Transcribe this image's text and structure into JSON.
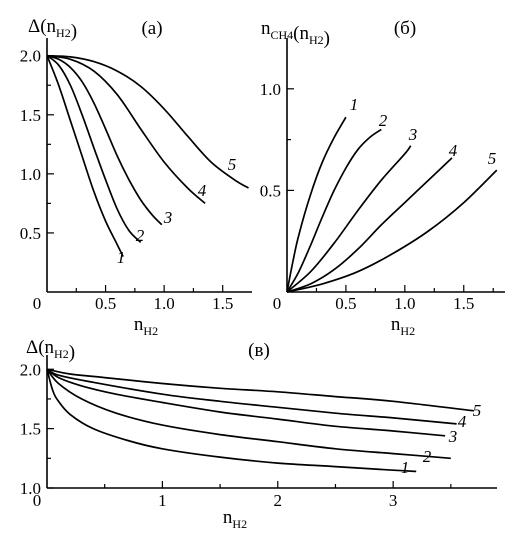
{
  "chart_data": [
    {
      "panel": "(а)",
      "type": "line",
      "ylabel": "Δ(n_H2)",
      "xlabel": "n_H2",
      "xlim": [
        0,
        1.75
      ],
      "ylim": [
        0,
        2.15
      ],
      "xticks": [
        "0",
        "0.5",
        "1.0",
        "1.5"
      ],
      "yticks": [
        "0.5",
        "1.0",
        "1.5",
        "2.0"
      ],
      "series": [
        {
          "name": "1",
          "x": [
            0,
            0.1,
            0.2,
            0.3,
            0.4,
            0.5,
            0.6,
            0.65
          ],
          "y": [
            2.0,
            1.75,
            1.45,
            1.15,
            0.85,
            0.6,
            0.4,
            0.3
          ]
        },
        {
          "name": "2",
          "x": [
            0,
            0.1,
            0.2,
            0.3,
            0.4,
            0.5,
            0.6,
            0.7,
            0.8
          ],
          "y": [
            2.0,
            1.92,
            1.75,
            1.5,
            1.22,
            0.95,
            0.7,
            0.52,
            0.42
          ]
        },
        {
          "name": "3",
          "x": [
            0,
            0.1,
            0.2,
            0.3,
            0.4,
            0.5,
            0.6,
            0.7,
            0.8,
            0.9,
            0.98
          ],
          "y": [
            2.0,
            1.97,
            1.9,
            1.78,
            1.6,
            1.38,
            1.15,
            0.95,
            0.78,
            0.65,
            0.57
          ]
        },
        {
          "name": "4",
          "x": [
            0,
            0.2,
            0.4,
            0.6,
            0.8,
            1.0,
            1.2,
            1.35
          ],
          "y": [
            2.0,
            1.97,
            1.87,
            1.67,
            1.38,
            1.1,
            0.88,
            0.75
          ]
        },
        {
          "name": "5",
          "x": [
            0,
            0.2,
            0.4,
            0.6,
            0.8,
            1.0,
            1.2,
            1.4,
            1.6,
            1.72
          ],
          "y": [
            2.0,
            1.99,
            1.95,
            1.87,
            1.74,
            1.55,
            1.32,
            1.1,
            0.95,
            0.88
          ]
        }
      ]
    },
    {
      "panel": "(б)",
      "type": "line",
      "ylabel": "n_CH4(n_H2)",
      "xlabel": "n_H2",
      "xlim": [
        0,
        1.85
      ],
      "ylim": [
        0,
        1.25
      ],
      "xticks": [
        "0",
        "0.5",
        "1.0",
        "1.5"
      ],
      "yticks": [
        "0.5",
        "1.0"
      ],
      "series": [
        {
          "name": "1",
          "x": [
            0,
            0.05,
            0.1,
            0.2,
            0.3,
            0.4,
            0.5
          ],
          "y": [
            0,
            0.15,
            0.28,
            0.48,
            0.64,
            0.76,
            0.86
          ]
        },
        {
          "name": "2",
          "x": [
            0,
            0.1,
            0.2,
            0.3,
            0.4,
            0.5,
            0.6,
            0.7,
            0.8
          ],
          "y": [
            0,
            0.1,
            0.23,
            0.37,
            0.5,
            0.61,
            0.7,
            0.76,
            0.8
          ]
        },
        {
          "name": "3",
          "x": [
            0,
            0.2,
            0.4,
            0.6,
            0.8,
            1.0,
            1.05
          ],
          "y": [
            0,
            0.1,
            0.24,
            0.4,
            0.55,
            0.68,
            0.72
          ]
        },
        {
          "name": "4",
          "x": [
            0,
            0.2,
            0.4,
            0.6,
            0.8,
            1.0,
            1.2,
            1.4
          ],
          "y": [
            0,
            0.04,
            0.11,
            0.21,
            0.33,
            0.44,
            0.55,
            0.66
          ]
        },
        {
          "name": "5",
          "x": [
            0,
            0.3,
            0.6,
            0.9,
            1.2,
            1.5,
            1.78
          ],
          "y": [
            0,
            0.04,
            0.1,
            0.19,
            0.3,
            0.44,
            0.6
          ]
        }
      ]
    },
    {
      "panel": "(в)",
      "type": "line",
      "ylabel": "Δ(n_H2)",
      "xlabel": "n_H2",
      "xlim": [
        0,
        3.9
      ],
      "ylim": [
        1.0,
        2.12
      ],
      "xticks": [
        "0",
        "1",
        "2",
        "3"
      ],
      "yticks": [
        "1.0",
        "1.5",
        "2.0"
      ],
      "series": [
        {
          "name": "1",
          "x": [
            0,
            0.05,
            0.1,
            0.2,
            0.4,
            0.7,
            1.0,
            1.5,
            2.0,
            2.5,
            3.0,
            3.2
          ],
          "y": [
            2.0,
            1.82,
            1.73,
            1.62,
            1.5,
            1.4,
            1.33,
            1.26,
            1.21,
            1.18,
            1.15,
            1.14
          ]
        },
        {
          "name": "2",
          "x": [
            0,
            0.1,
            0.3,
            0.6,
            1.0,
            1.5,
            2.0,
            2.5,
            3.0,
            3.5
          ],
          "y": [
            2.0,
            1.88,
            1.75,
            1.63,
            1.53,
            1.45,
            1.39,
            1.33,
            1.29,
            1.25
          ]
        },
        {
          "name": "3",
          "x": [
            0,
            0.1,
            0.3,
            0.6,
            1.0,
            1.5,
            2.0,
            2.5,
            3.0,
            3.45
          ],
          "y": [
            2.0,
            1.93,
            1.86,
            1.79,
            1.72,
            1.64,
            1.58,
            1.52,
            1.48,
            1.44
          ]
        },
        {
          "name": "4",
          "x": [
            0,
            0.1,
            0.4,
            1.0,
            1.5,
            2.0,
            2.5,
            3.0,
            3.55
          ],
          "y": [
            2.0,
            1.95,
            1.89,
            1.79,
            1.73,
            1.68,
            1.63,
            1.59,
            1.54
          ]
        },
        {
          "name": "5",
          "x": [
            0,
            0.2,
            0.5,
            1.0,
            1.5,
            2.0,
            2.5,
            3.0,
            3.7
          ],
          "y": [
            2.0,
            1.96,
            1.93,
            1.88,
            1.84,
            1.81,
            1.77,
            1.73,
            1.65
          ]
        }
      ]
    }
  ]
}
